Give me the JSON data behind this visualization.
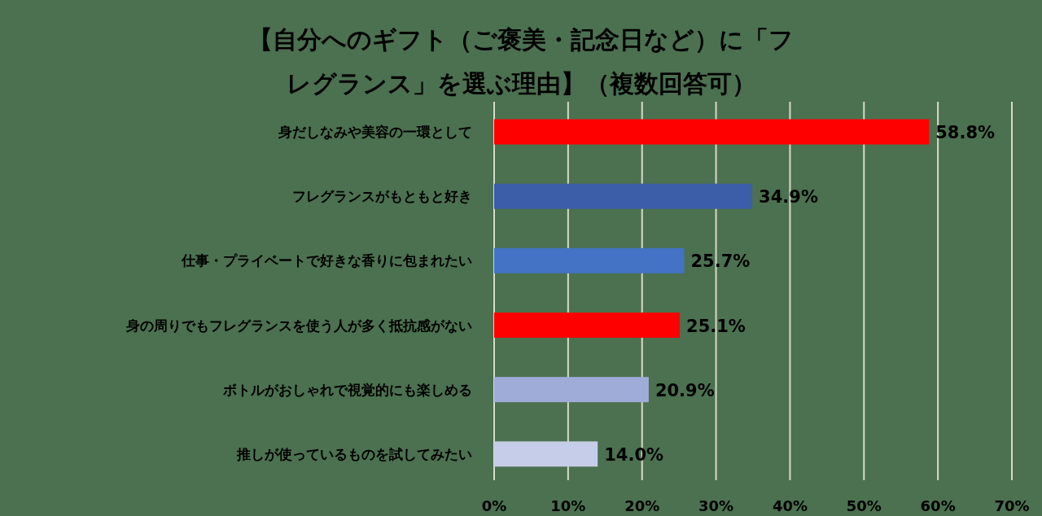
{
  "chart_data": {
    "type": "bar",
    "orientation": "horizontal",
    "title": "【自分へのギフト（ご褒美・記念日など）に「フレグランス」を選ぶ理由】（複数回答可）",
    "categories": [
      "身だしなみや美容の一環として",
      "フレグランスがもともと好き",
      "仕事・プライベートで好きな香りに包まれたい",
      "身の周りでもフレグランスを使う人が多く抵抗感がない",
      "ボトルがおしゃれで視覚的にも楽しめる",
      "推しが使っているものを試してみたい"
    ],
    "values": [
      58.8,
      34.9,
      25.7,
      25.1,
      20.9,
      14.0
    ],
    "value_labels": [
      "58.8%",
      "34.9%",
      "25.7%",
      "25.1%",
      "20.9%",
      "14.0%"
    ],
    "colors": [
      "#ff0000",
      "#3c5ea8",
      "#4472c4",
      "#ff0000",
      "#a0acd8",
      "#c6cde8"
    ],
    "xlim": [
      0,
      70
    ],
    "xticks": [
      {
        "value": 0,
        "label": "0%"
      },
      {
        "value": 10,
        "label": "10%"
      },
      {
        "value": 20,
        "label": "20%"
      },
      {
        "value": 30,
        "label": "30%"
      },
      {
        "value": 40,
        "label": "40%"
      },
      {
        "value": 50,
        "label": "50%"
      },
      {
        "value": 60,
        "label": "60%"
      },
      {
        "value": 70,
        "label": "70%"
      }
    ],
    "grid": "x"
  }
}
